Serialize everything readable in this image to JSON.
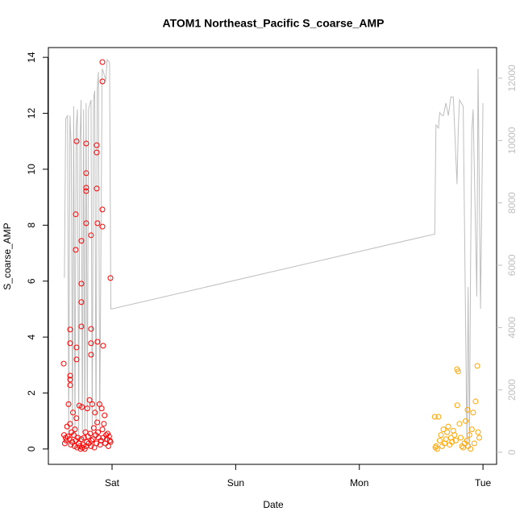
{
  "chart_data": {
    "type": "scatter-line",
    "title": "ATOM1 Northeast_Pacific S_coarse_AMP",
    "xlabel": "Date",
    "ylabel": "S_coarse_AMP",
    "xlim": [
      0.485,
      4.11
    ],
    "xticks": [
      {
        "value": 1,
        "label": "Sat"
      },
      {
        "value": 2,
        "label": "Sun"
      },
      {
        "value": 3,
        "label": "Mon"
      },
      {
        "value": 4,
        "label": "Tue"
      }
    ],
    "ylim": [
      -0.55,
      14.35
    ],
    "yticks": [
      0,
      2,
      4,
      6,
      8,
      10,
      12,
      14
    ],
    "y2lim": [
      -388,
      12982
    ],
    "y2ticks": [
      0,
      2000,
      4000,
      6000,
      8000,
      10000,
      12000
    ],
    "series": [
      {
        "kind": "points",
        "color": "#ff0000",
        "x": [
          0.609,
          0.661,
          0.661,
          0.661,
          0.661,
          0.661,
          0.713,
          0.706,
          0.706,
          0.713,
          0.713,
          0.752,
          0.752,
          0.752,
          0.752,
          0.791,
          0.791,
          0.791,
          0.791,
          0.791,
          0.83,
          0.83,
          0.83,
          0.83,
          0.876,
          0.876,
          0.876,
          0.882,
          0.882,
          0.922,
          0.922,
          0.922,
          0.922,
          0.928,
          0.987,
          0.612,
          0.618,
          0.625,
          0.63,
          0.636,
          0.642,
          0.648,
          0.655,
          0.66,
          0.667,
          0.672,
          0.678,
          0.684,
          0.69,
          0.696,
          0.7,
          0.707,
          0.712,
          0.718,
          0.724,
          0.73,
          0.735,
          0.74,
          0.746,
          0.752,
          0.757,
          0.762,
          0.768,
          0.773,
          0.78,
          0.785,
          0.79,
          0.796,
          0.8,
          0.806,
          0.812,
          0.818,
          0.824,
          0.83,
          0.835,
          0.84,
          0.846,
          0.852,
          0.857,
          0.862,
          0.868,
          0.874,
          0.88,
          0.886,
          0.892,
          0.898,
          0.904,
          0.91,
          0.916,
          0.922,
          0.928,
          0.934,
          0.94,
          0.946,
          0.952,
          0.958,
          0.964,
          0.97,
          0.976,
          0.982,
          0.988
        ],
        "values": [
          3.05,
          4.27,
          3.78,
          2.62,
          2.48,
          2.28,
          11.0,
          8.39,
          7.12,
          3.63,
          3.2,
          7.44,
          5.91,
          5.25,
          4.38,
          10.92,
          9.86,
          9.34,
          9.22,
          8.07,
          7.64,
          4.29,
          3.37,
          3.78,
          10.86,
          10.6,
          9.31,
          8.07,
          3.83,
          13.83,
          13.14,
          8.56,
          7.95,
          3.69,
          6.11,
          0.5,
          0.2,
          0.4,
          0.3,
          0.8,
          0.45,
          1.6,
          0.35,
          0.9,
          0.15,
          0.6,
          0.25,
          1.3,
          0.5,
          0.1,
          0.7,
          0.3,
          1.1,
          0.05,
          0.4,
          0.2,
          1.55,
          0.1,
          0.0,
          0.35,
          1.5,
          0.05,
          0.15,
          0.4,
          0.0,
          0.6,
          0.1,
          0.25,
          1.45,
          0.45,
          0.2,
          1.75,
          0.55,
          0.1,
          0.3,
          1.6,
          0.35,
          0.75,
          0.05,
          1.3,
          0.5,
          0.2,
          0.95,
          0.6,
          0.4,
          1.6,
          0.15,
          0.3,
          1.45,
          0.7,
          0.4,
          0.9,
          1.2,
          0.2,
          0.5,
          0.35,
          0.55,
          0.1,
          0.45,
          0.3,
          0.25
        ]
      },
      {
        "kind": "points",
        "color": "#ffa500",
        "x": [
          3.61,
          3.615,
          3.62,
          3.63,
          3.64,
          3.65,
          3.66,
          3.67,
          3.68,
          3.69,
          3.7,
          3.71,
          3.72,
          3.73,
          3.74,
          3.75,
          3.76,
          3.77,
          3.78,
          3.79,
          3.792,
          3.8,
          3.81,
          3.82,
          3.83,
          3.84,
          3.85,
          3.86,
          3.87,
          3.875,
          3.88,
          3.89,
          3.9,
          3.91,
          3.92,
          3.93,
          3.94,
          3.954,
          3.96,
          3.97
        ],
        "values": [
          1.15,
          0.05,
          0.1,
          0.0,
          1.15,
          0.3,
          0.5,
          0.1,
          0.7,
          0.2,
          0.35,
          0.6,
          0.8,
          0.15,
          0.4,
          0.25,
          0.65,
          0.5,
          0.3,
          2.85,
          1.56,
          2.77,
          0.9,
          0.4,
          0.1,
          0.05,
          0.2,
          1.0,
          0.3,
          1.4,
          0.1,
          0.5,
          0.0,
          0.7,
          1.3,
          0.2,
          1.7,
          2.97,
          0.6,
          0.4
        ]
      },
      {
        "kind": "line",
        "axis": "y2",
        "color": "#bebebe",
        "x": [
          0.615,
          0.625,
          0.64,
          0.65,
          0.66,
          0.67,
          0.68,
          0.69,
          0.7,
          0.71,
          0.72,
          0.73,
          0.74,
          0.75,
          0.76,
          0.77,
          0.78,
          0.79,
          0.8,
          0.81,
          0.83,
          0.84,
          0.85,
          0.86,
          0.87,
          0.88,
          0.89,
          0.9,
          0.92,
          0.93,
          0.95,
          0.96,
          0.98,
          0.99,
          1.0,
          3.61,
          3.62,
          3.64,
          3.65,
          3.67,
          3.68,
          3.7,
          3.72,
          3.74,
          3.76,
          3.79,
          3.8,
          3.81,
          3.84,
          3.87,
          3.88,
          3.89,
          3.9,
          3.91,
          3.92,
          3.95,
          3.96,
          3.98,
          4.0
        ],
        "values": [
          5600,
          10700,
          10800,
          500,
          10800,
          9800,
          300,
          11100,
          500,
          10400,
          11000,
          400,
          9800,
          11300,
          600,
          11000,
          400,
          11200,
          700,
          11000,
          11300,
          500,
          11300,
          11600,
          500,
          11600,
          12200,
          800,
          12300,
          12200,
          11900,
          12600,
          12500,
          4600,
          4600,
          7000,
          10500,
          10400,
          10900,
          10800,
          10800,
          11200,
          10800,
          11400,
          11400,
          8600,
          10400,
          11300,
          11100,
          200,
          5300,
          200,
          6200,
          10300,
          11000,
          5000,
          12300,
          4600,
          11200
        ]
      }
    ]
  }
}
